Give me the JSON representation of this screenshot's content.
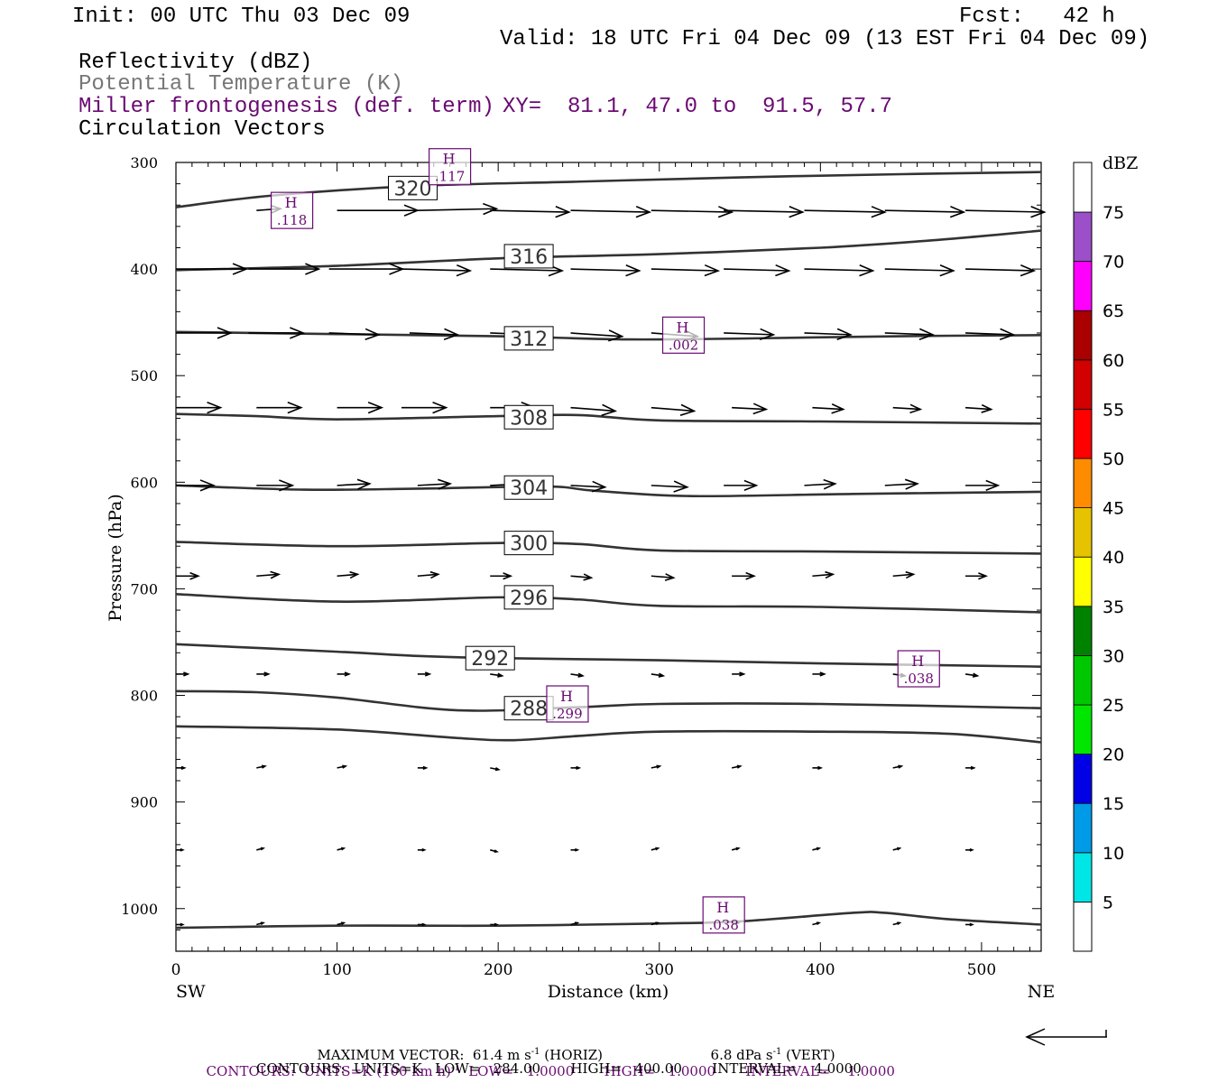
{
  "header": {
    "init": "Init: 00 UTC Thu 03 Dec 09",
    "fcst": "Fcst:   42 h",
    "valid": "Valid: 18 UTC Fri 04 Dec 09 (13 EST Fri 04 Dec 09)",
    "field1": "Reflectivity (dBZ)",
    "field2": "Potential Temperature (K)",
    "field3": "Miller frontogenesis (def. term)",
    "xy": "XY=  81.1, 47.0 to  91.5, 57.7",
    "field4": "Circulation Vectors"
  },
  "colors": {
    "purple": "#6a0a72",
    "contour": "#333333"
  },
  "chart_data": {
    "type": "cross-section",
    "xlabel": "Distance (km)",
    "ylabel": "Pressure (hPa)",
    "xlim": [
      0,
      537
    ],
    "ylim": [
      1040,
      300
    ],
    "x_ticks": [
      "0",
      "100",
      "200",
      "300",
      "400",
      "500"
    ],
    "y_ticks": [
      "300",
      "400",
      "500",
      "600",
      "700",
      "800",
      "900",
      "1000"
    ],
    "x_end_labels": {
      "left": "SW",
      "right": "NE"
    },
    "theta_contours": [
      {
        "value": "320",
        "points": [
          [
            0,
            342
          ],
          [
            60,
            331
          ],
          [
            150,
            322
          ],
          [
            250,
            318
          ],
          [
            350,
            314
          ],
          [
            450,
            311
          ],
          [
            537,
            309
          ]
        ]
      },
      {
        "value": "316",
        "points": [
          [
            0,
            401
          ],
          [
            100,
            397
          ],
          [
            200,
            390
          ],
          [
            300,
            386
          ],
          [
            400,
            380
          ],
          [
            470,
            373
          ],
          [
            537,
            364
          ]
        ]
      },
      {
        "value": "312",
        "points": [
          [
            0,
            459
          ],
          [
            100,
            461
          ],
          [
            200,
            463
          ],
          [
            280,
            466
          ],
          [
            360,
            465
          ],
          [
            450,
            463
          ],
          [
            537,
            462
          ]
        ]
      },
      {
        "value": "308",
        "points": [
          [
            0,
            536
          ],
          [
            50,
            538
          ],
          [
            100,
            541
          ],
          [
            200,
            538
          ],
          [
            250,
            537
          ],
          [
            300,
            542
          ],
          [
            400,
            543
          ],
          [
            537,
            545
          ]
        ]
      },
      {
        "value": "304",
        "points": [
          [
            0,
            603
          ],
          [
            80,
            607
          ],
          [
            150,
            606
          ],
          [
            230,
            604
          ],
          [
            260,
            608
          ],
          [
            320,
            613
          ],
          [
            420,
            611
          ],
          [
            537,
            609
          ]
        ]
      },
      {
        "value": "300",
        "points": [
          [
            0,
            656
          ],
          [
            100,
            660
          ],
          [
            200,
            657
          ],
          [
            250,
            658
          ],
          [
            300,
            664
          ],
          [
            400,
            665
          ],
          [
            537,
            667
          ]
        ]
      },
      {
        "value": "296",
        "points": [
          [
            0,
            705
          ],
          [
            100,
            712
          ],
          [
            200,
            708
          ],
          [
            250,
            710
          ],
          [
            300,
            716
          ],
          [
            400,
            717
          ],
          [
            537,
            722
          ]
        ]
      },
      {
        "value": "292",
        "points": [
          [
            0,
            752
          ],
          [
            100,
            759
          ],
          [
            150,
            763
          ],
          [
            200,
            765
          ],
          [
            300,
            767
          ],
          [
            400,
            770
          ],
          [
            537,
            773
          ]
        ]
      },
      {
        "value": "288",
        "points": [
          [
            0,
            796
          ],
          [
            50,
            797
          ],
          [
            100,
            802
          ],
          [
            175,
            814
          ],
          [
            250,
            811
          ],
          [
            300,
            808
          ],
          [
            400,
            808
          ],
          [
            537,
            812
          ]
        ]
      },
      {
        "value": "",
        "points": [
          [
            0,
            829
          ],
          [
            100,
            832
          ],
          [
            175,
            840
          ],
          [
            210,
            842
          ],
          [
            250,
            838
          ],
          [
            300,
            834
          ],
          [
            400,
            834
          ],
          [
            480,
            836
          ],
          [
            537,
            844
          ]
        ]
      },
      {
        "value": "",
        "points": [
          [
            0,
            1018
          ],
          [
            100,
            1016
          ],
          [
            200,
            1016
          ],
          [
            300,
            1014
          ],
          [
            350,
            1012
          ],
          [
            420,
            1004
          ],
          [
            440,
            1004
          ],
          [
            480,
            1010
          ],
          [
            537,
            1015
          ]
        ]
      }
    ],
    "theta_labels": [
      {
        "value": "320",
        "x": 147,
        "p": 324
      },
      {
        "value": "316",
        "x": 219,
        "p": 388
      },
      {
        "value": "312",
        "x": 219,
        "p": 465
      },
      {
        "value": "308",
        "x": 219,
        "p": 539
      },
      {
        "value": "304",
        "x": 219,
        "p": 605
      },
      {
        "value": "300",
        "x": 219,
        "p": 657
      },
      {
        "value": "296",
        "x": 219,
        "p": 708
      },
      {
        "value": "292",
        "x": 195,
        "p": 765
      },
      {
        "value": "288",
        "x": 219,
        "p": 812
      }
    ],
    "frontogenesis_highs": [
      {
        "label": "H",
        "value": ".117",
        "x": 170,
        "p": 304
      },
      {
        "label": "H",
        "value": ".118",
        "x": 72,
        "p": 345
      },
      {
        "label": "H",
        "value": ".002",
        "x": 315,
        "p": 462
      },
      {
        "label": "H",
        "value": ".038",
        "x": 461,
        "p": 775
      },
      {
        "label": "H",
        "value": ".299",
        "x": 243,
        "p": 808
      },
      {
        "label": "H",
        "value": ".038",
        "x": 340,
        "p": 1006
      }
    ],
    "vectors": [
      {
        "p": 345,
        "x": [
          50,
          100,
          150,
          195,
          245,
          295,
          340,
          390,
          440,
          490
        ],
        "u": [
          14,
          47,
          46,
          46,
          46,
          47,
          46,
          47,
          46,
          46
        ],
        "w": [
          1,
          0,
          1,
          -1,
          -1,
          -1,
          -1,
          -1,
          -1,
          -1
        ]
      },
      {
        "p": 400,
        "x": [
          0,
          45,
          95,
          140,
          195,
          245,
          295,
          340,
          390,
          440,
          490
        ],
        "u": [
          41,
          41,
          43,
          40,
          42,
          40,
          39,
          38,
          40,
          40,
          40
        ],
        "w": [
          0,
          0,
          0,
          -1,
          -1,
          -1,
          -1,
          -1,
          -1,
          -1,
          -1
        ]
      },
      {
        "p": 460,
        "x": [
          0,
          45,
          95,
          145,
          195,
          245,
          295,
          340,
          390,
          440,
          490
        ],
        "u": [
          32,
          32,
          29,
          28,
          27,
          30,
          27,
          29,
          27,
          28,
          28
        ],
        "w": [
          0,
          0,
          -1,
          -1,
          -1,
          -2,
          -2,
          -1,
          -1,
          -1,
          -1
        ]
      },
      {
        "p": 530,
        "x": [
          0,
          50,
          100,
          140,
          195,
          245,
          295,
          345,
          395,
          445,
          490
        ],
        "u": [
          26,
          26,
          26,
          26,
          26,
          26,
          25,
          20,
          18,
          16,
          15
        ],
        "w": [
          0,
          0,
          0,
          0,
          0,
          -2,
          -2,
          -1,
          -1,
          -1,
          -1
        ]
      },
      {
        "p": 603,
        "x": [
          0,
          50,
          100,
          150,
          195,
          245,
          295,
          340,
          390,
          440,
          490
        ],
        "u": [
          22,
          21,
          19,
          19,
          20,
          20,
          21,
          19,
          18,
          19,
          19
        ],
        "w": [
          0,
          0,
          1,
          1,
          1,
          -1,
          -1,
          0,
          1,
          1,
          0
        ]
      },
      {
        "p": 688,
        "x": [
          0,
          50,
          100,
          150,
          195,
          245,
          295,
          345,
          395,
          445,
          490
        ],
        "u": [
          13,
          13,
          12,
          12,
          12,
          12,
          13,
          13,
          12,
          12,
          12
        ],
        "w": [
          0,
          1,
          1,
          1,
          0,
          -1,
          -1,
          0,
          1,
          1,
          0
        ]
      },
      {
        "p": 780,
        "x": [
          0,
          50,
          100,
          150,
          195,
          245,
          295,
          345,
          395,
          445,
          490
        ],
        "u": [
          7,
          7,
          7,
          7,
          7,
          7,
          7,
          7,
          7,
          7,
          7
        ],
        "w": [
          0,
          0,
          0,
          0,
          -1,
          -1,
          -1,
          0,
          0,
          -1,
          -1
        ]
      },
      {
        "p": 868,
        "x": [
          0,
          50,
          100,
          150,
          195,
          245,
          295,
          345,
          395,
          445,
          490
        ],
        "u": [
          5,
          5,
          5,
          5,
          5,
          5,
          5,
          5,
          5,
          5,
          5
        ],
        "w": [
          0,
          1,
          1,
          0,
          -1,
          0,
          1,
          1,
          0,
          1,
          0
        ]
      },
      {
        "p": 945,
        "x": [
          0,
          50,
          100,
          150,
          195,
          245,
          295,
          345,
          395,
          445,
          490
        ],
        "u": [
          4,
          4,
          4,
          4,
          4,
          4,
          4,
          4,
          4,
          4,
          4
        ],
        "w": [
          0,
          1,
          1,
          0,
          -1,
          0,
          1,
          1,
          1,
          1,
          0
        ]
      },
      {
        "p": 1015,
        "x": [
          0,
          50,
          100,
          150,
          195,
          245,
          295,
          345,
          395,
          445,
          490
        ],
        "u": [
          4,
          4,
          4,
          4,
          4,
          4,
          4,
          4,
          4,
          4,
          4
        ],
        "w": [
          0,
          1,
          1,
          0,
          0,
          1,
          1,
          1,
          1,
          1,
          0
        ]
      }
    ],
    "colorbar": {
      "unit": "dBZ",
      "labels": [
        "5",
        "10",
        "15",
        "20",
        "25",
        "30",
        "35",
        "40",
        "45",
        "50",
        "55",
        "60",
        "65",
        "70",
        "75"
      ],
      "colors": [
        "#ffffff",
        "#00e6e6",
        "#009be6",
        "#0000e6",
        "#00e600",
        "#00c800",
        "#008200",
        "#ffff00",
        "#e6c300",
        "#ff8c00",
        "#ff0000",
        "#d20000",
        "#aa0000",
        "#ff00ff",
        "#9b4fc8",
        "#ffffff"
      ]
    }
  },
  "footer": {
    "max_vector": "MAXIMUM VECTOR:  61.4 m s",
    "max_vector_exp": "-1",
    "max_vector_horiz": " (HORIZ)",
    "max_vert": "6.8 dPa s",
    "max_vert_exp": "-1",
    "max_vert_tail": " (VERT)",
    "contours1": "CONTOURS:  UNITS=K (100 km h)",
    "contours1_exp": "-1",
    "contours1_tail": "  LOW=   1.0000       HIGH=   1.0000       INTERVAL=    1.0000",
    "contours2": "CONTOURS:  UNITS=K   LOW=   284.00       HIGH=   400.00       INTERVAL=    4.0000"
  }
}
